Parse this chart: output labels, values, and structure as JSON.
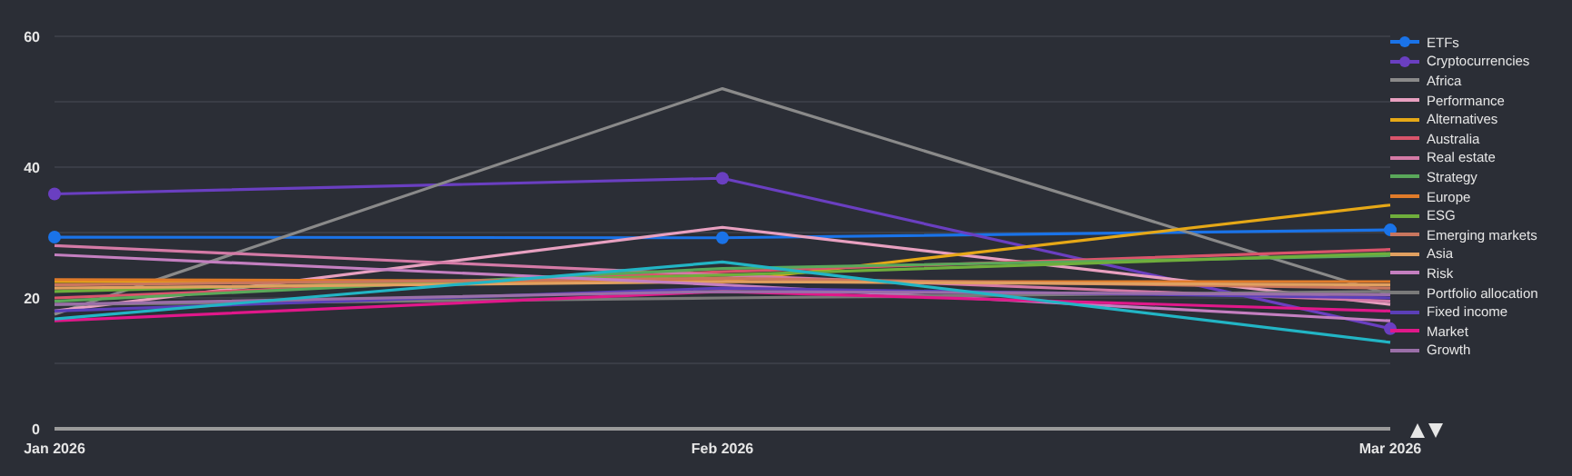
{
  "chart_data": {
    "type": "line",
    "categories": [
      "Jan 2026",
      "Feb 2026",
      "Mar 2026"
    ],
    "ylim": [
      0,
      60
    ],
    "yticks": [
      0,
      {
        "value": 10,
        "label": null
      },
      20,
      {
        "value": 30,
        "label": null
      },
      40,
      {
        "value": 50,
        "label": null
      },
      60
    ],
    "grid": "y",
    "legend": "right",
    "marker": "none",
    "line_style": "solid",
    "series": [
      {
        "name": "ETFs",
        "color": "#1a73e8",
        "marker": "circle",
        "values": [
          29.3,
          29.2,
          30.4
        ]
      },
      {
        "name": "Cryptocurrencies",
        "color": "#6a3fc1",
        "marker": "circle",
        "values": [
          35.9,
          38.3,
          15.3
        ]
      },
      {
        "name": "Africa",
        "color": "#8a8a8a",
        "values": [
          17.5,
          52,
          20.5
        ]
      },
      {
        "name": "Performance",
        "color": "#e8a0c0",
        "values": [
          18,
          30.8,
          19
        ]
      },
      {
        "name": "Alternatives",
        "color": "#e6a817",
        "values": [
          22.5,
          22.5,
          34.2
        ]
      },
      {
        "name": "Australia",
        "color": "#d9546b",
        "values": [
          20,
          24,
          27.4
        ]
      },
      {
        "name": "Real estate",
        "color": "#d47aa6",
        "values": [
          28,
          23.5,
          19.5
        ]
      },
      {
        "name": "Strategy",
        "color": "#5aa85a",
        "values": [
          19.5,
          24.5,
          26.5
        ]
      },
      {
        "name": "Europe",
        "color": "#e07b2a",
        "values": [
          22.8,
          22.5,
          22.5
        ]
      },
      {
        "name": "ESG",
        "color": "#6fae3c",
        "values": [
          21,
          23.5,
          26.8
        ]
      },
      {
        "name": "Emerging markets",
        "color": "#c9765e",
        "values": [
          22,
          23,
          21.5
        ]
      },
      {
        "name": "Asia",
        "color": "#e0a060",
        "values": [
          21.5,
          22.5,
          22
        ]
      },
      {
        "name": "Risk",
        "color": "#c47fc0",
        "values": [
          26.6,
          22,
          16.5
        ]
      },
      {
        "name": "Portfolio allocation",
        "color": "#7a7a7a",
        "values": [
          19,
          20,
          21
        ]
      },
      {
        "name": "Fixed income",
        "color": "#5b3fb8",
        "values": [
          18,
          21.5,
          20
        ]
      },
      {
        "name": "Market",
        "color": "#e0188a",
        "values": [
          16.5,
          21,
          18
        ]
      },
      {
        "name": "Growth",
        "color": "#9a6fa8",
        "values": [
          19,
          21,
          20.5
        ]
      },
      {
        "color": "#22b5c5",
        "values": [
          16.8,
          25.5,
          13.2
        ]
      }
    ]
  }
}
